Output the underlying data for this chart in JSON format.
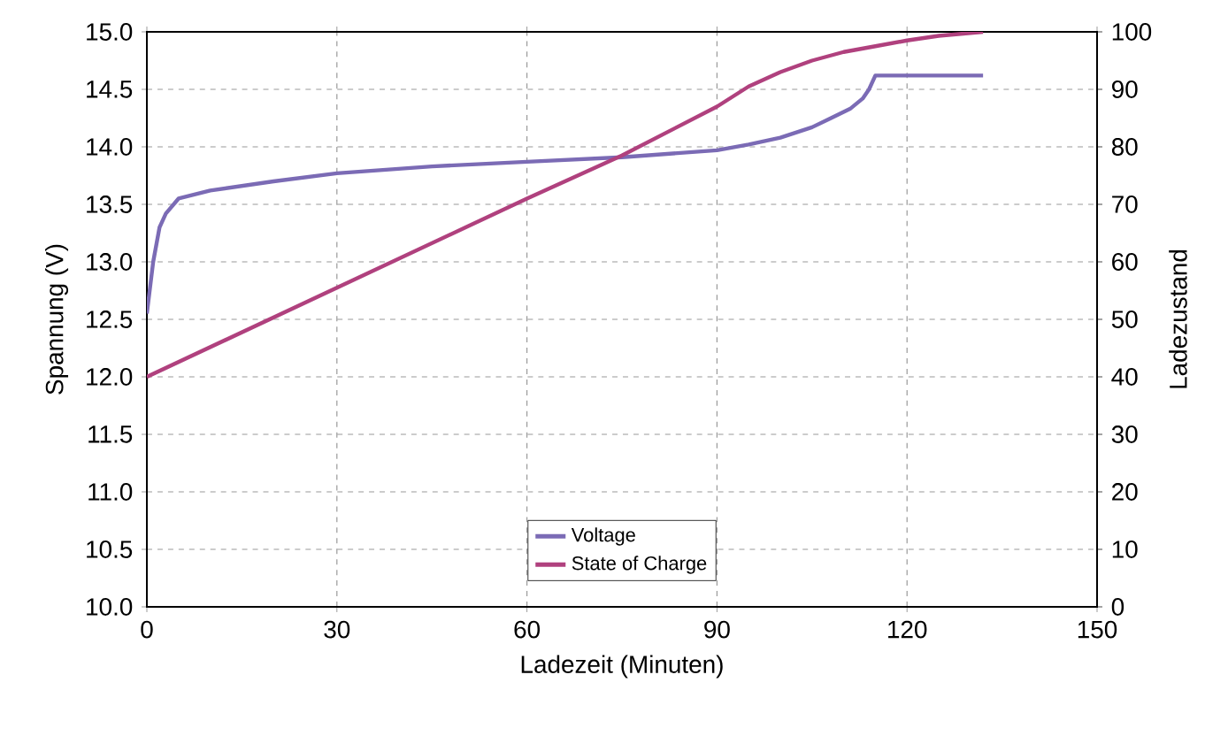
{
  "chart_data": {
    "type": "line",
    "xlabel": "Ladezeit (Minuten)",
    "ylabel": "Spannung (V)",
    "y2label": "Ladezustand",
    "xlim": [
      0,
      150
    ],
    "xticks": [
      0,
      30,
      60,
      90,
      120,
      150
    ],
    "ylim": [
      10,
      15
    ],
    "yticks": [
      {
        "value": 10,
        "label": "10.0"
      },
      10.5,
      {
        "value": 11,
        "label": "11.0"
      },
      11.5,
      {
        "value": 12,
        "label": "12.0"
      },
      12.5,
      {
        "value": 13,
        "label": "13.0"
      },
      13.5,
      {
        "value": 14,
        "label": "14.0"
      },
      14.5,
      {
        "value": 15,
        "label": "15.0"
      }
    ],
    "y2lim": [
      0,
      100
    ],
    "y2ticks": [
      0,
      10,
      20,
      30,
      40,
      50,
      60,
      70,
      80,
      90,
      100
    ],
    "grid": true,
    "legend": "bottom",
    "series": [
      {
        "name": "Voltage",
        "color": "#7b6bb5",
        "x": [
          0,
          1,
          2,
          3,
          5,
          10,
          20,
          30,
          45,
          60,
          75,
          90,
          95,
          100,
          105,
          108,
          111,
          113,
          114,
          115,
          120,
          132
        ],
        "values": [
          12.55,
          13.0,
          13.3,
          13.42,
          13.55,
          13.62,
          13.7,
          13.77,
          13.83,
          13.87,
          13.91,
          13.97,
          14.02,
          14.08,
          14.17,
          14.25,
          14.33,
          14.42,
          14.5,
          14.62,
          14.62,
          14.62
        ]
      },
      {
        "name": "State of Charge",
        "color": "#b0417e",
        "axis": "y2",
        "x": [
          0,
          30,
          60,
          75,
          90,
          95,
          100,
          105,
          110,
          115,
          120,
          125,
          132
        ],
        "values": [
          40,
          55.5,
          71,
          78.5,
          87,
          90.5,
          93,
          95,
          96.5,
          97.5,
          98.5,
          99.3,
          100
        ]
      }
    ]
  }
}
